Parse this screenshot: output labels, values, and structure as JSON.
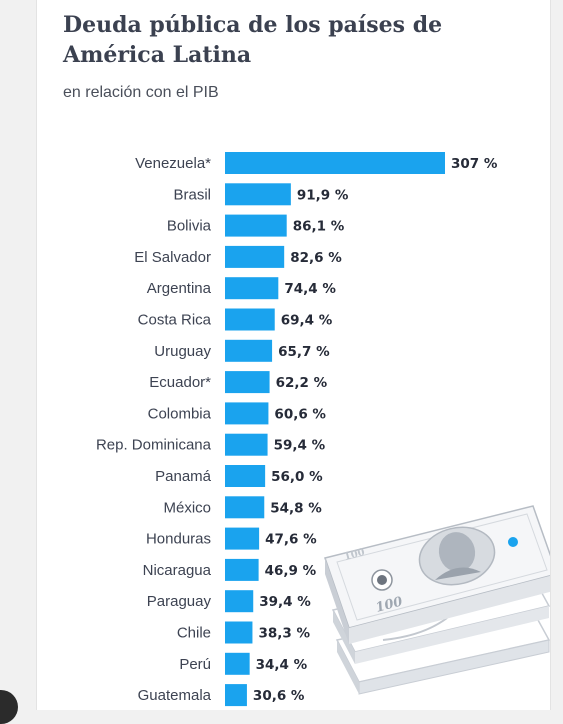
{
  "chart_data": {
    "type": "bar",
    "orientation": "horizontal",
    "title": "Deuda pública de los países de América Latina",
    "subtitle": "en relación con el PIB",
    "categories": [
      "Venezuela*",
      "Brasil",
      "Bolivia",
      "El Salvador",
      "Argentina",
      "Costa Rica",
      "Uruguay",
      "Ecuador*",
      "Colombia",
      "Rep. Dominicana",
      "Panamá",
      "México",
      "Honduras",
      "Nicaragua",
      "Paraguay",
      "Chile",
      "Perú",
      "Guatemala"
    ],
    "values": [
      307,
      91.9,
      86.1,
      82.6,
      74.4,
      69.4,
      65.7,
      62.2,
      60.6,
      59.4,
      56.0,
      54.8,
      47.6,
      46.9,
      39.4,
      38.3,
      34.4,
      30.6
    ],
    "value_labels": [
      "307 %",
      "91,9 %",
      "86,1 %",
      "82,6 %",
      "74,4 %",
      "69,4 %",
      "65,7 %",
      "62,2 %",
      "60,6 %",
      "59,4 %",
      "56,0 %",
      "54,8 %",
      "47,6 %",
      "46,9 %",
      "39,4 %",
      "38,3 %",
      "34,4 %",
      "30,6 %"
    ],
    "xlim": [
      0,
      307
    ],
    "grid": false,
    "legend": "none",
    "bar_color": "#1aa3ee"
  },
  "illustration": {
    "name": "dollar-bills-icon",
    "denomination": "100"
  }
}
